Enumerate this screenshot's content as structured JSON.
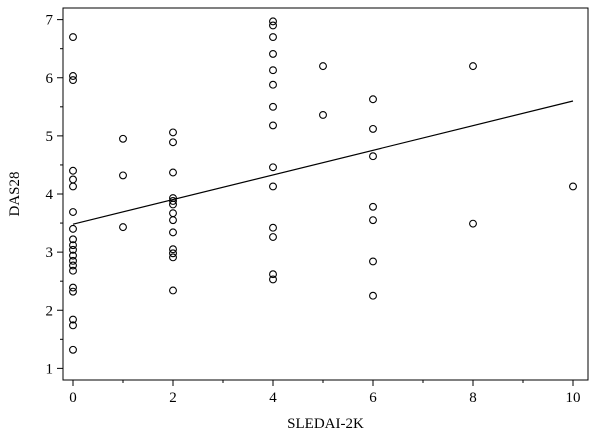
{
  "chart_data": {
    "type": "scatter",
    "xlabel": "SLEDAI-2K",
    "ylabel": "DAS28",
    "xlim": [
      -0.2,
      10.3
    ],
    "ylim": [
      0.8,
      7.2
    ],
    "x_ticks": [
      0,
      2,
      4,
      6,
      8,
      10
    ],
    "x_tick_labels": [
      "0",
      "2",
      "4",
      "6",
      "8",
      "10"
    ],
    "x_minor_ticks": [
      1,
      3,
      5,
      7,
      9
    ],
    "y_ticks": [
      1,
      2,
      3,
      4,
      5,
      6,
      7
    ],
    "y_tick_labels": [
      "1",
      "2",
      "3",
      "4",
      "5",
      "6",
      "7"
    ],
    "y_minor_ticks": [
      1.5,
      2.5,
      3.5,
      4.5,
      5.5,
      6.5
    ],
    "grid": false,
    "marker": "open-circle",
    "points": [
      {
        "x": 0,
        "y": 6.7
      },
      {
        "x": 0,
        "y": 6.03
      },
      {
        "x": 0,
        "y": 5.96
      },
      {
        "x": 0,
        "y": 4.4
      },
      {
        "x": 0,
        "y": 4.25
      },
      {
        "x": 0,
        "y": 4.13
      },
      {
        "x": 0,
        "y": 3.69
      },
      {
        "x": 0,
        "y": 3.4
      },
      {
        "x": 0,
        "y": 3.22
      },
      {
        "x": 0,
        "y": 3.12
      },
      {
        "x": 0,
        "y": 3.04
      },
      {
        "x": 0,
        "y": 2.94
      },
      {
        "x": 0,
        "y": 2.85
      },
      {
        "x": 0,
        "y": 2.77
      },
      {
        "x": 0,
        "y": 2.68
      },
      {
        "x": 0,
        "y": 2.39
      },
      {
        "x": 0,
        "y": 2.32
      },
      {
        "x": 0,
        "y": 1.84
      },
      {
        "x": 0,
        "y": 1.74
      },
      {
        "x": 0,
        "y": 1.32
      },
      {
        "x": 1,
        "y": 4.95
      },
      {
        "x": 1,
        "y": 4.32
      },
      {
        "x": 1,
        "y": 3.43
      },
      {
        "x": 2,
        "y": 5.06
      },
      {
        "x": 2,
        "y": 4.89
      },
      {
        "x": 2,
        "y": 4.37
      },
      {
        "x": 2,
        "y": 3.93
      },
      {
        "x": 2,
        "y": 3.88
      },
      {
        "x": 2,
        "y": 3.82
      },
      {
        "x": 2,
        "y": 3.67
      },
      {
        "x": 2,
        "y": 3.55
      },
      {
        "x": 2,
        "y": 3.34
      },
      {
        "x": 2,
        "y": 3.05
      },
      {
        "x": 2,
        "y": 2.98
      },
      {
        "x": 2,
        "y": 2.91
      },
      {
        "x": 2,
        "y": 2.34
      },
      {
        "x": 4,
        "y": 6.97
      },
      {
        "x": 4,
        "y": 6.9
      },
      {
        "x": 4,
        "y": 6.7
      },
      {
        "x": 4,
        "y": 6.41
      },
      {
        "x": 4,
        "y": 6.13
      },
      {
        "x": 4,
        "y": 5.88
      },
      {
        "x": 4,
        "y": 5.5
      },
      {
        "x": 4,
        "y": 5.18
      },
      {
        "x": 4,
        "y": 4.46
      },
      {
        "x": 4,
        "y": 4.13
      },
      {
        "x": 4,
        "y": 3.42
      },
      {
        "x": 4,
        "y": 3.26
      },
      {
        "x": 4,
        "y": 2.62
      },
      {
        "x": 4,
        "y": 2.53
      },
      {
        "x": 5,
        "y": 6.2
      },
      {
        "x": 5,
        "y": 5.36
      },
      {
        "x": 6,
        "y": 5.63
      },
      {
        "x": 6,
        "y": 5.12
      },
      {
        "x": 6,
        "y": 4.65
      },
      {
        "x": 6,
        "y": 3.78
      },
      {
        "x": 6,
        "y": 3.55
      },
      {
        "x": 6,
        "y": 2.84
      },
      {
        "x": 6,
        "y": 2.25
      },
      {
        "x": 8,
        "y": 6.2
      },
      {
        "x": 8,
        "y": 3.49
      },
      {
        "x": 10,
        "y": 4.13
      }
    ],
    "regression_line": {
      "x": [
        0,
        10
      ],
      "y": [
        3.48,
        5.6
      ]
    }
  }
}
